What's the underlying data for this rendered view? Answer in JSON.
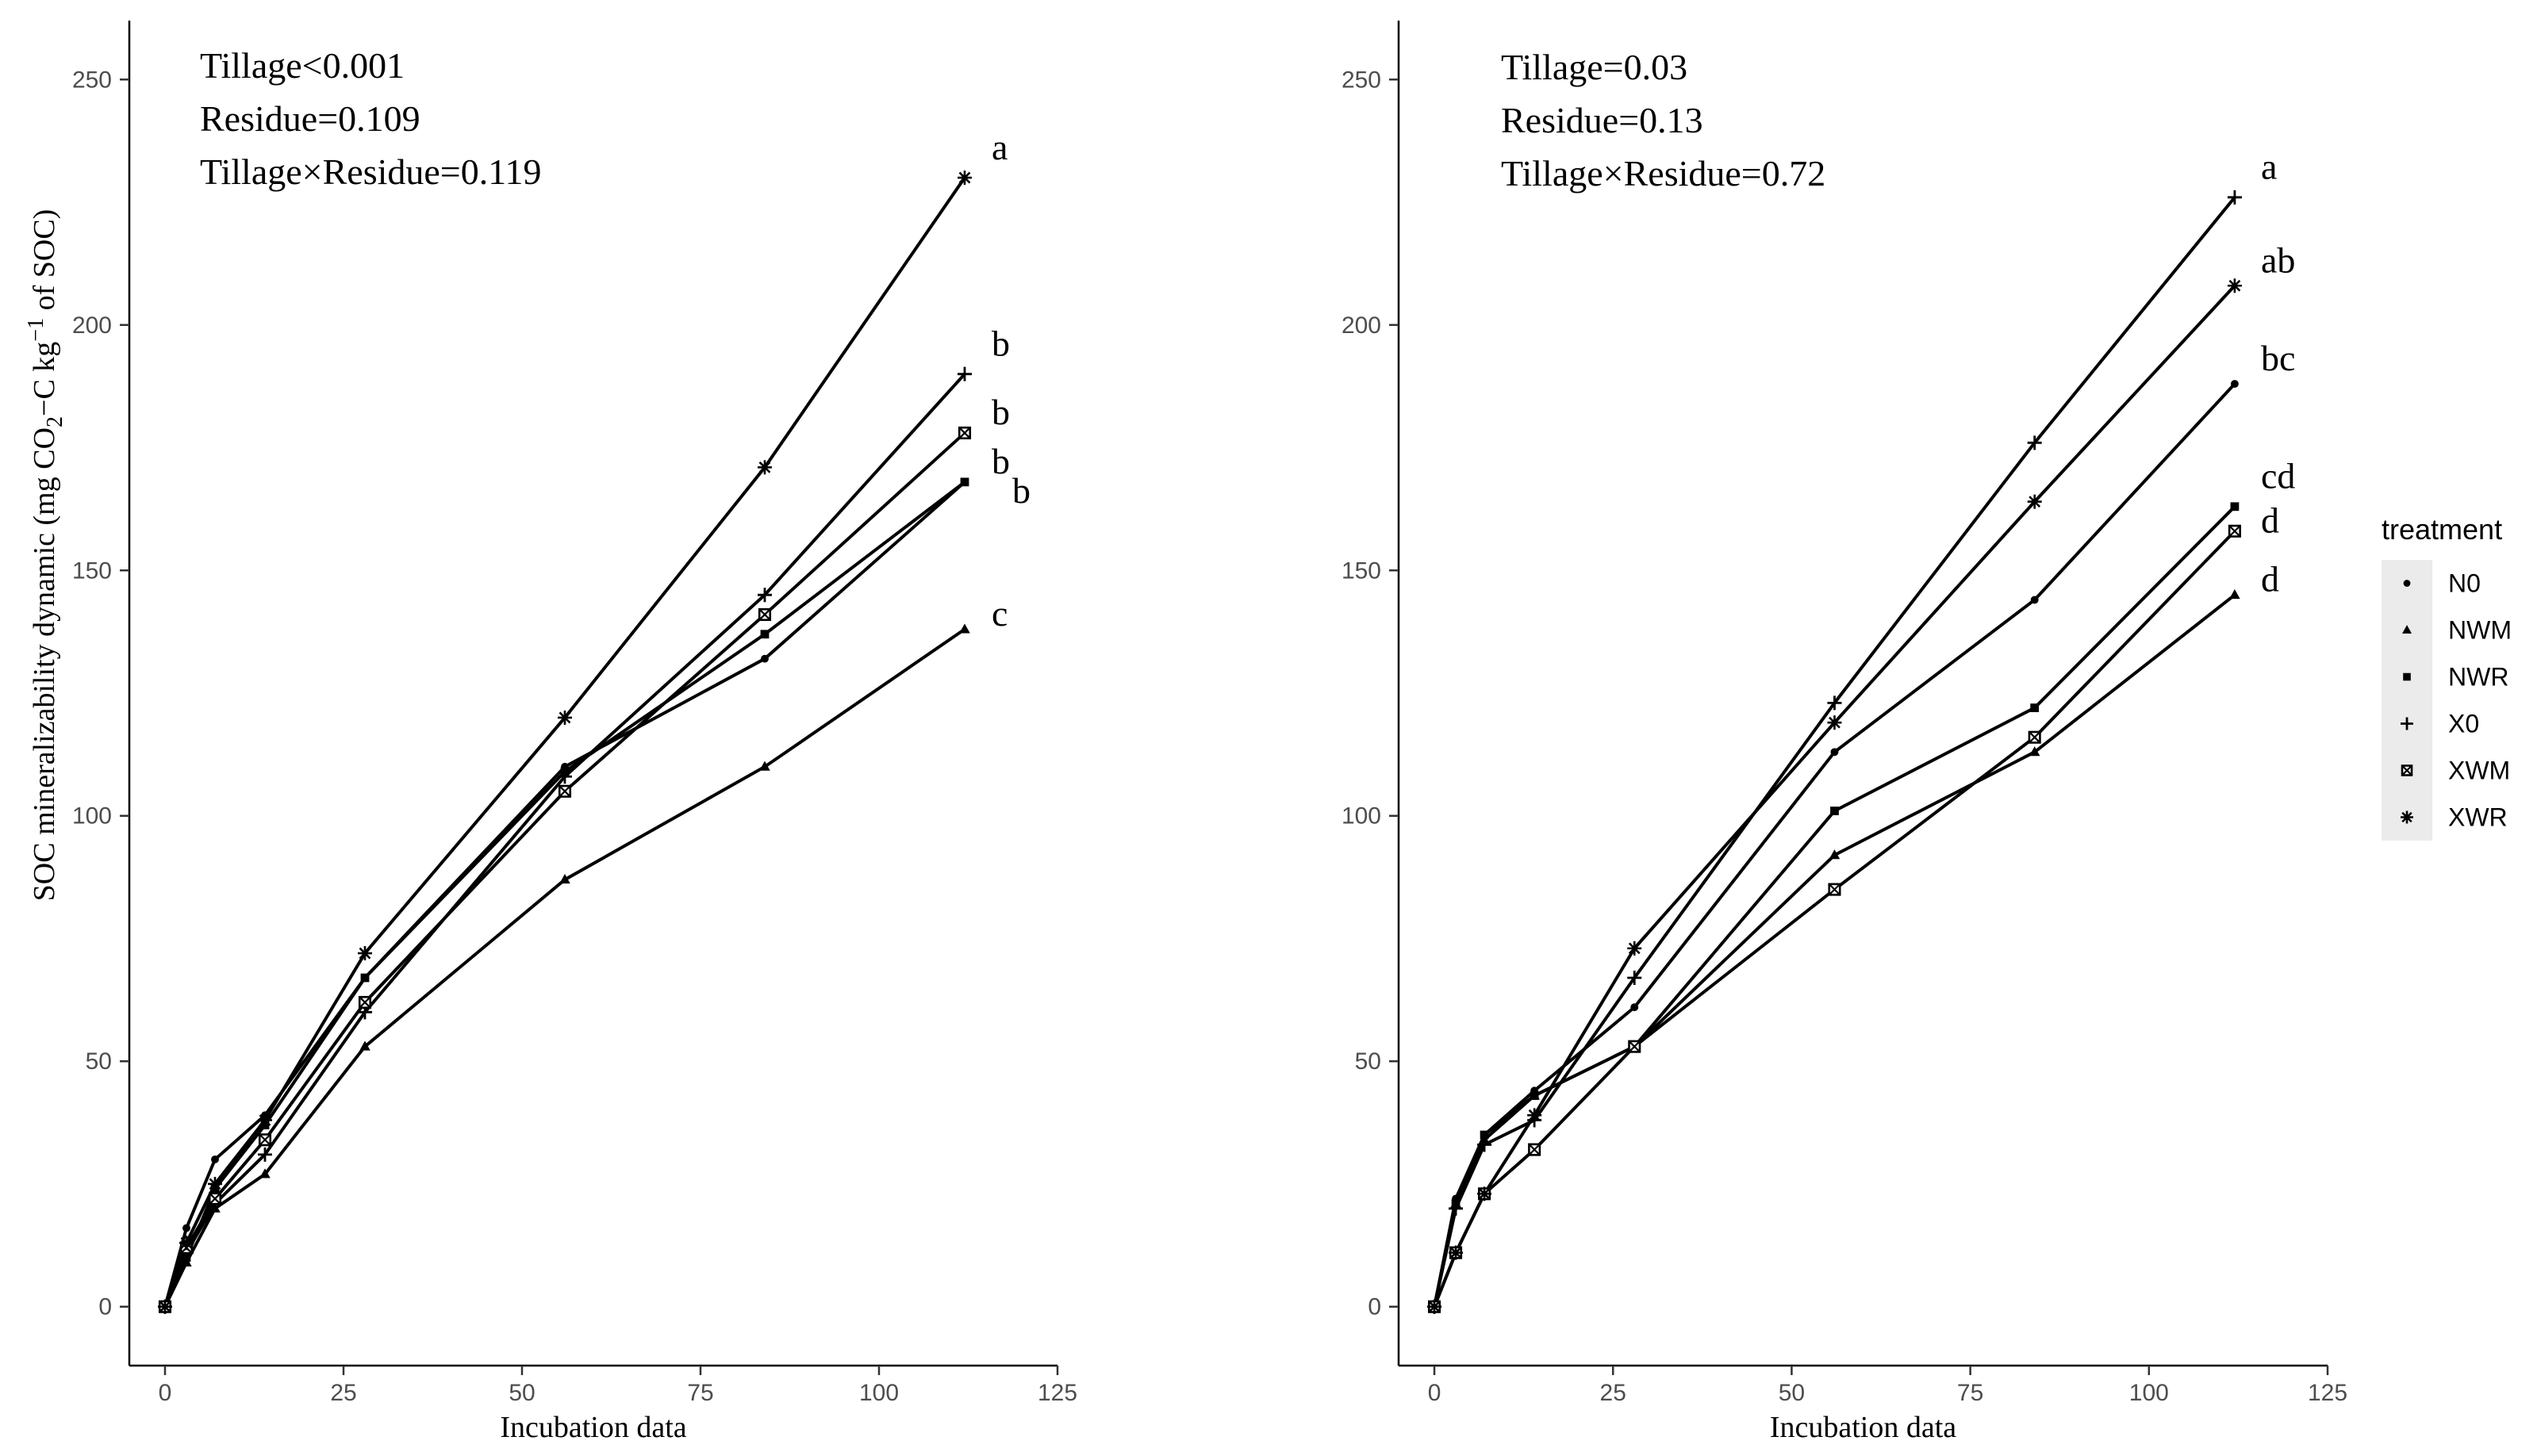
{
  "chart_data": [
    {
      "type": "line",
      "panel": "left",
      "xlabel": "Incubation data",
      "ylabel": "SOC mineralizability dynamic (mg CO₂−C kg⁻¹ of SOC)",
      "xlim": [
        -5,
        125
      ],
      "ylim": [
        -12,
        262
      ],
      "xticks": [
        0,
        25,
        50,
        75,
        100,
        125
      ],
      "yticks": [
        0,
        50,
        100,
        150,
        200,
        250
      ],
      "x": [
        0,
        3,
        7,
        14,
        28,
        56,
        84,
        112
      ],
      "stats": [
        "Tillage<0.001",
        "Residue=0.109",
        "Tillage×Residue=0.119"
      ],
      "series": [
        {
          "name": "N0",
          "marker": "dot",
          "values": [
            0,
            16,
            30,
            39,
            67,
            110,
            132,
            168
          ]
        },
        {
          "name": "NWM",
          "marker": "triangle",
          "values": [
            0,
            9,
            20,
            27,
            53,
            87,
            110,
            138
          ]
        },
        {
          "name": "NWR",
          "marker": "square",
          "values": [
            0,
            10,
            24,
            37,
            67,
            109,
            137,
            168
          ]
        },
        {
          "name": "X0",
          "marker": "plus",
          "values": [
            0,
            11,
            21,
            31,
            60,
            108,
            145,
            190
          ]
        },
        {
          "name": "XWM",
          "marker": "boxx",
          "values": [
            0,
            12,
            22,
            34,
            62,
            105,
            141,
            178
          ]
        },
        {
          "name": "XWR",
          "marker": "star",
          "values": [
            0,
            13,
            25,
            38,
            72,
            120,
            171,
            230
          ]
        }
      ],
      "letters": [
        {
          "text": "a",
          "y": 236
        },
        {
          "text": "b",
          "y": 196
        },
        {
          "text": "b",
          "y": 182
        },
        {
          "text": "b",
          "y": 172
        },
        {
          "text": "b",
          "y": 166
        },
        {
          "text": "c",
          "y": 141
        }
      ]
    },
    {
      "type": "line",
      "panel": "right",
      "xlabel": "Incubation data",
      "ylabel": "",
      "xlim": [
        -5,
        125
      ],
      "ylim": [
        -12,
        262
      ],
      "xticks": [
        0,
        25,
        50,
        75,
        100,
        125
      ],
      "yticks": [
        0,
        50,
        100,
        150,
        200,
        250
      ],
      "x": [
        0,
        3,
        7,
        14,
        28,
        56,
        84,
        112
      ],
      "stats": [
        "Tillage=0.03",
        "Residue=0.13",
        "Tillage×Residue=0.72"
      ],
      "series": [
        {
          "name": "N0",
          "marker": "dot",
          "values": [
            0,
            22,
            35,
            44,
            61,
            113,
            144,
            188
          ]
        },
        {
          "name": "NWM",
          "marker": "triangle",
          "values": [
            0,
            21,
            34,
            43,
            53,
            92,
            113,
            145
          ]
        },
        {
          "name": "NWR",
          "marker": "square",
          "values": [
            0,
            21,
            35,
            43,
            53,
            101,
            122,
            163
          ]
        },
        {
          "name": "X0",
          "marker": "plus",
          "values": [
            0,
            20,
            33,
            38,
            67,
            123,
            176,
            226
          ]
        },
        {
          "name": "XWM",
          "marker": "boxx",
          "values": [
            0,
            11,
            23,
            32,
            53,
            85,
            116,
            158
          ]
        },
        {
          "name": "XWR",
          "marker": "star",
          "values": [
            0,
            11,
            23,
            39,
            73,
            119,
            164,
            208
          ]
        }
      ],
      "letters": [
        {
          "text": "a",
          "y": 232
        },
        {
          "text": "ab",
          "y": 213
        },
        {
          "text": "bc",
          "y": 193
        },
        {
          "text": "cd",
          "y": 169
        },
        {
          "text": "d",
          "y": 160
        },
        {
          "text": "d",
          "y": 148
        }
      ]
    }
  ],
  "legend": {
    "title": "treatment",
    "items": [
      {
        "label": "N0",
        "marker": "dot"
      },
      {
        "label": "NWM",
        "marker": "triangle"
      },
      {
        "label": "NWR",
        "marker": "square"
      },
      {
        "label": "X0",
        "marker": "plus"
      },
      {
        "label": "XWM",
        "marker": "boxx"
      },
      {
        "label": "XWR",
        "marker": "star"
      }
    ]
  }
}
